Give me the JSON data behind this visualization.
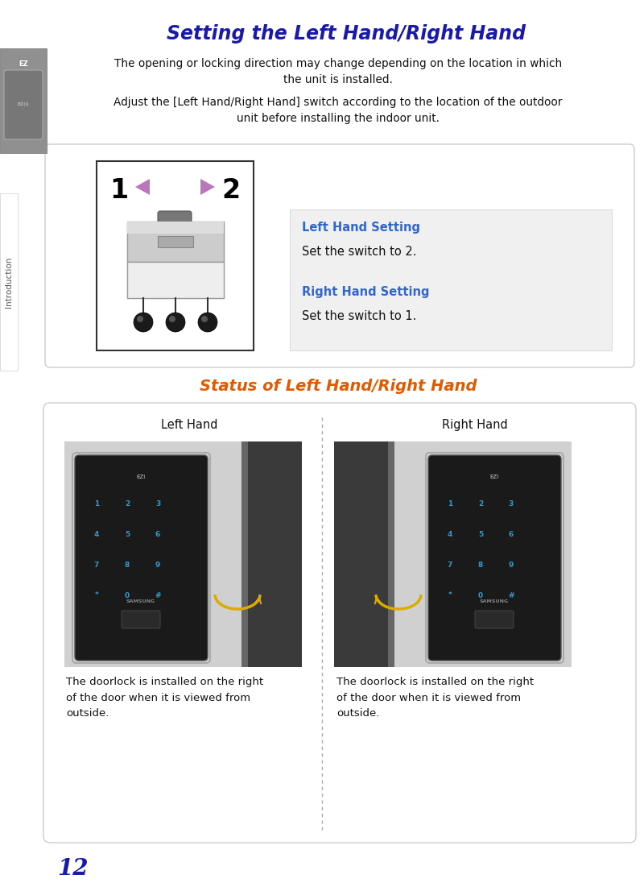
{
  "title": "Setting the Left Hand/Right Hand",
  "title_color": "#1a1aaa",
  "body_text1": "The opening or locking direction may change depending on the location in which\nthe unit is installed.",
  "body_text2": "Adjust the [Left Hand/Right Hand] switch according to the location of the outdoor\nunit before installing the indoor unit.",
  "section2_title": "Status of Left Hand/Right Hand",
  "section2_title_color": "#e05a00",
  "left_hand_label": "Left Hand",
  "right_hand_label": "Right Hand",
  "left_desc": "The doorlock is installed on the right\nof the door when it is viewed from\noutside.",
  "right_desc": "The doorlock is installed on the right\nof the door when it is viewed from\noutside.",
  "lh_setting_title": "Left Hand Setting",
  "lh_setting_text": "Set the switch to 2.",
  "rh_setting_title": "Right Hand Setting",
  "rh_setting_text": "Set the switch to 1.",
  "setting_title_color": "#3366cc",
  "bg_color": "#ffffff",
  "sidebar_text": "Introduction",
  "page_number": "12",
  "arrow_lr_color": "#bb77bb",
  "switch_arrow_color": "#ddaa00",
  "font_color": "#111111",
  "key_color": "#3399cc",
  "box_fill": "#f0f0f0",
  "box_edge": "#cccccc"
}
